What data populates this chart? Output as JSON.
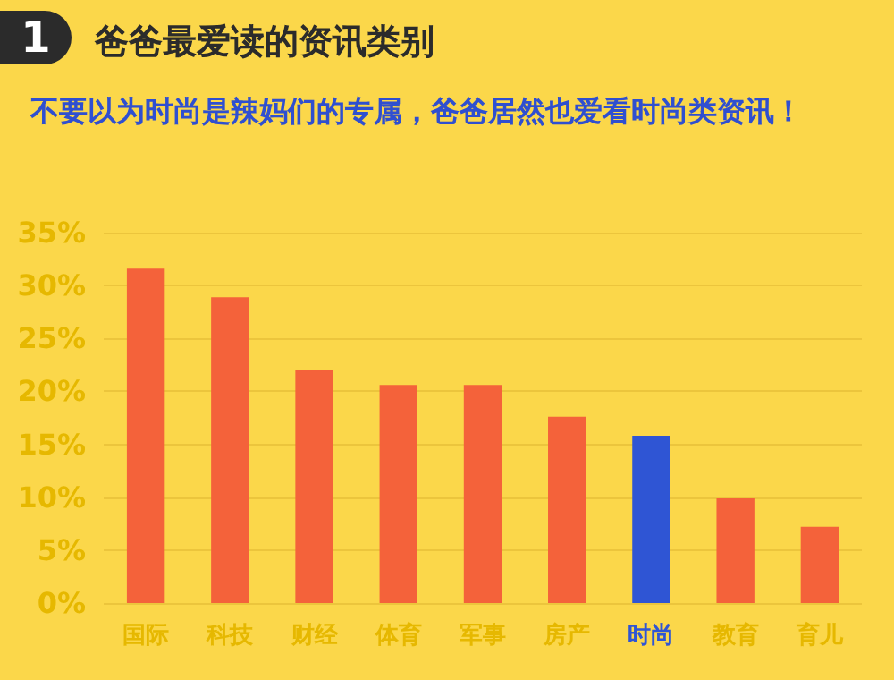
{
  "chart_data": {
    "type": "bar",
    "title": "爸爸最爱读的资讯类别",
    "subtitle": "不要以为时尚是辣妈们的专属，爸爸居然也爱看时尚类资讯！",
    "annotations": [
      "1"
    ],
    "categories": [
      "国际",
      "科技",
      "财经",
      "体育",
      "军事",
      "房产",
      "时尚",
      "教育",
      "育儿"
    ],
    "values": [
      31.6,
      28.9,
      22.0,
      20.6,
      20.6,
      17.6,
      15.8,
      9.9,
      7.2
    ],
    "colors": [
      "#f4623a",
      "#f4623a",
      "#f4623a",
      "#f4623a",
      "#f4623a",
      "#f4623a",
      "#2f55d4",
      "#f4623a",
      "#f4623a"
    ],
    "ylim": [
      0,
      35
    ],
    "yticks": [
      {
        "value": 0,
        "label": "0%"
      },
      {
        "value": 5,
        "label": "5%"
      },
      {
        "value": 10,
        "label": "10%"
      },
      {
        "value": 15,
        "label": "15%"
      },
      {
        "value": 20,
        "label": "20%"
      },
      {
        "value": 25,
        "label": "25%"
      },
      {
        "value": 30,
        "label": "30%"
      },
      {
        "value": 35,
        "label": "35%"
      }
    ],
    "grid": "y"
  }
}
